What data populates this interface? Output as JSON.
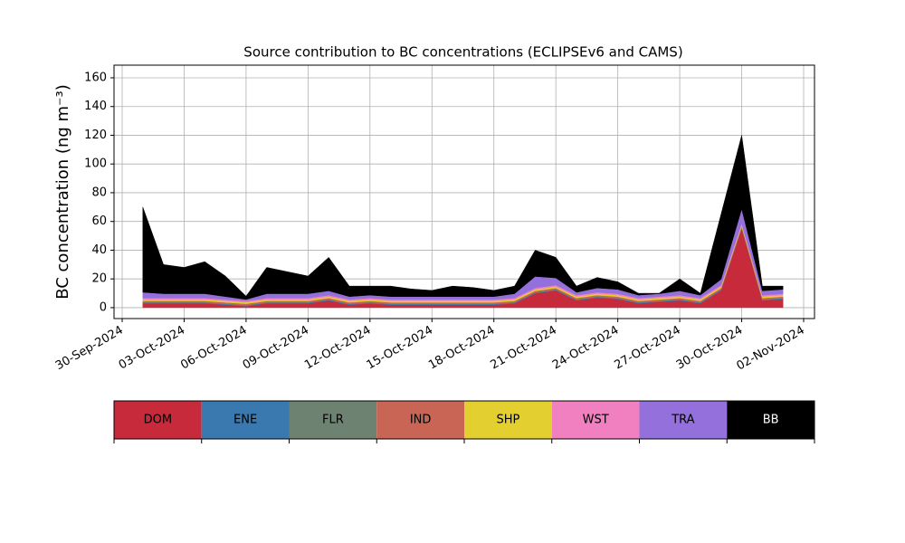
{
  "chart_data": {
    "type": "stackedarea",
    "title": "Source contribution to BC concentrations (ECLIPSEv6 and CAMS)",
    "ylabel": "BC concentration (ng m⁻³)",
    "x": [
      "2024-10-01",
      "2024-10-02",
      "2024-10-03",
      "2024-10-04",
      "2024-10-05",
      "2024-10-06",
      "2024-10-07",
      "2024-10-08",
      "2024-10-09",
      "2024-10-10",
      "2024-10-11",
      "2024-10-12",
      "2024-10-13",
      "2024-10-14",
      "2024-10-15",
      "2024-10-16",
      "2024-10-17",
      "2024-10-18",
      "2024-10-19",
      "2024-10-20",
      "2024-10-21",
      "2024-10-22",
      "2024-10-23",
      "2024-10-24",
      "2024-10-25",
      "2024-10-26",
      "2024-10-27",
      "2024-10-28",
      "2024-10-29",
      "2024-10-30",
      "2024-10-31",
      "2024-11-01"
    ],
    "series": [
      {
        "name": "DOM",
        "color": "#c72a3a",
        "values": [
          3,
          3,
          3,
          3,
          2,
          1,
          3,
          3,
          3,
          5,
          2,
          3,
          2,
          2,
          2,
          2,
          2,
          2,
          3,
          10,
          12,
          5,
          7,
          6,
          3,
          4,
          5,
          3,
          12,
          55,
          5,
          6
        ]
      },
      {
        "name": "ENE",
        "color": "#3a78b0",
        "values": [
          0.5,
          0.5,
          0.5,
          0.5,
          0.5,
          0.5,
          0.5,
          0.5,
          0.5,
          0.5,
          0.5,
          0.5,
          0.5,
          0.5,
          0.5,
          0.5,
          0.5,
          0.5,
          0.5,
          0.5,
          0.5,
          0.5,
          0.5,
          0.5,
          0.5,
          0.5,
          0.5,
          0.5,
          0.5,
          0.5,
          0.5,
          0.5
        ]
      },
      {
        "name": "FLR",
        "color": "#6e8272",
        "values": [
          0.2,
          0.2,
          0.2,
          0.2,
          0.2,
          0.2,
          0.2,
          0.2,
          0.2,
          0.2,
          0.2,
          0.2,
          0.2,
          0.2,
          0.2,
          0.2,
          0.2,
          0.2,
          0.2,
          0.2,
          0.2,
          0.2,
          0.2,
          0.2,
          0.2,
          0.2,
          0.2,
          0.2,
          0.2,
          0.2,
          0.2,
          0.2
        ]
      },
      {
        "name": "IND",
        "color": "#c96555",
        "values": [
          1,
          1,
          1,
          1,
          1,
          1,
          1,
          1,
          1,
          1,
          1,
          1,
          1,
          1,
          1,
          1,
          1,
          1,
          1,
          1,
          1,
          1,
          1,
          1,
          1,
          1,
          1,
          1,
          1,
          1,
          1,
          1
        ]
      },
      {
        "name": "SHP",
        "color": "#e4cf30",
        "values": [
          1,
          1,
          1,
          1,
          1,
          1,
          1,
          1,
          1,
          1,
          1,
          1,
          1,
          1,
          1,
          1,
          1,
          1,
          1,
          1,
          1,
          1,
          1,
          1,
          1,
          1,
          1,
          1,
          1,
          1,
          1,
          1
        ]
      },
      {
        "name": "WST",
        "color": "#f080c0",
        "values": [
          1,
          1,
          1,
          1,
          1,
          1,
          1,
          1,
          1,
          1,
          1,
          1,
          1,
          1,
          1,
          1,
          1,
          1,
          1,
          1,
          1,
          1,
          1,
          1,
          1,
          1,
          1,
          1,
          1,
          1,
          1,
          1
        ]
      },
      {
        "name": "TRA",
        "color": "#9370db",
        "values": [
          4,
          3,
          3,
          3,
          2,
          1,
          3,
          3,
          3,
          3,
          2,
          2,
          2,
          2,
          2,
          2,
          2,
          2,
          3,
          8,
          5,
          2,
          3,
          3,
          2,
          2,
          3,
          2,
          4,
          10,
          3,
          3
        ]
      },
      {
        "name": "BB",
        "color": "#000000",
        "values": [
          59.3,
          20.3,
          18.3,
          22.3,
          14.3,
          2.3,
          18.3,
          15.3,
          12.3,
          23.3,
          7.3,
          6.3,
          7.3,
          5.3,
          4.3,
          7.3,
          6.3,
          4.3,
          5.3,
          18.3,
          14.3,
          4.3,
          7.3,
          5.3,
          1.3,
          0.3,
          8.3,
          1.3,
          45.3,
          51.3,
          3.3,
          2.3
        ]
      }
    ],
    "xlim": [
      "2024-09-30",
      "2024-11-02"
    ],
    "xticks": [
      {
        "value": "2024-09-30",
        "label": "30-Sep-2024"
      },
      {
        "value": "2024-10-03",
        "label": "03-Oct-2024"
      },
      {
        "value": "2024-10-06",
        "label": "06-Oct-2024"
      },
      {
        "value": "2024-10-09",
        "label": "09-Oct-2024"
      },
      {
        "value": "2024-10-12",
        "label": "12-Oct-2024"
      },
      {
        "value": "2024-10-15",
        "label": "15-Oct-2024"
      },
      {
        "value": "2024-10-18",
        "label": "18-Oct-2024"
      },
      {
        "value": "2024-10-21",
        "label": "21-Oct-2024"
      },
      {
        "value": "2024-10-24",
        "label": "24-Oct-2024"
      },
      {
        "value": "2024-10-27",
        "label": "27-Oct-2024"
      },
      {
        "value": "2024-10-30",
        "label": "30-Oct-2024"
      },
      {
        "value": "2024-11-02",
        "label": "02-Nov-2024"
      }
    ],
    "ylim": [
      -7.6,
      168.8
    ],
    "yticks": [
      0,
      20,
      40,
      60,
      80,
      100,
      120,
      140,
      160
    ],
    "grid": true,
    "legend": "bottom"
  }
}
